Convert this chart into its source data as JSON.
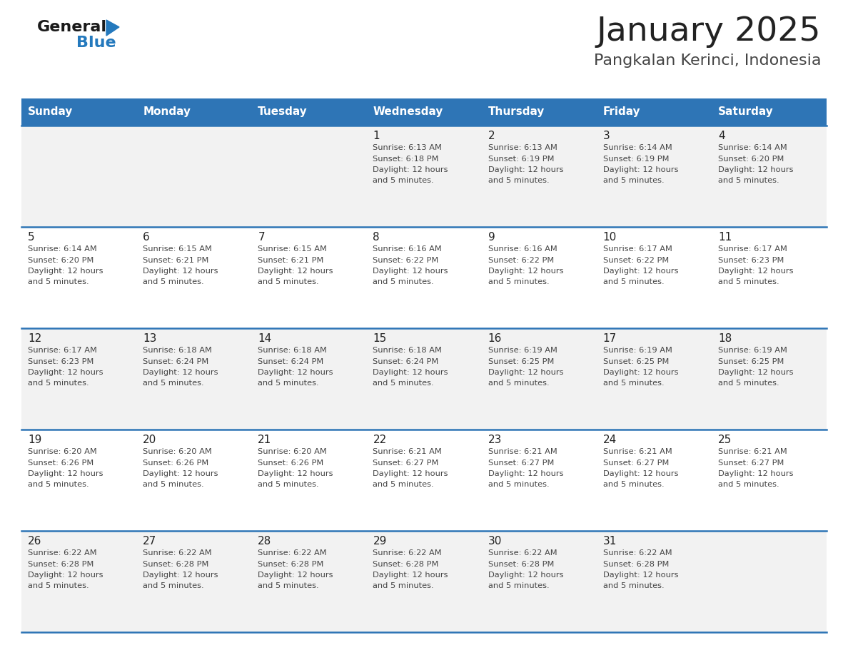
{
  "title": "January 2025",
  "subtitle": "Pangkalan Kerinci, Indonesia",
  "days_of_week": [
    "Sunday",
    "Monday",
    "Tuesday",
    "Wednesday",
    "Thursday",
    "Friday",
    "Saturday"
  ],
  "header_bg": "#2E75B6",
  "header_text_color": "#FFFFFF",
  "cell_bg_odd": "#F2F2F2",
  "cell_bg_even": "#FFFFFF",
  "divider_color": "#2E75B6",
  "text_color": "#444444",
  "day_num_color": "#222222",
  "title_color": "#222222",
  "subtitle_color": "#444444",
  "logo_general_color": "#1a1a1a",
  "logo_blue_color": "#2479BD",
  "calendar": [
    [
      null,
      null,
      null,
      1,
      2,
      3,
      4
    ],
    [
      5,
      6,
      7,
      8,
      9,
      10,
      11
    ],
    [
      12,
      13,
      14,
      15,
      16,
      17,
      18
    ],
    [
      19,
      20,
      21,
      22,
      23,
      24,
      25
    ],
    [
      26,
      27,
      28,
      29,
      30,
      31,
      null
    ]
  ],
  "day_data": {
    "1": {
      "sunrise": "6:13 AM",
      "sunset": "6:18 PM"
    },
    "2": {
      "sunrise": "6:13 AM",
      "sunset": "6:19 PM"
    },
    "3": {
      "sunrise": "6:14 AM",
      "sunset": "6:19 PM"
    },
    "4": {
      "sunrise": "6:14 AM",
      "sunset": "6:20 PM"
    },
    "5": {
      "sunrise": "6:14 AM",
      "sunset": "6:20 PM"
    },
    "6": {
      "sunrise": "6:15 AM",
      "sunset": "6:21 PM"
    },
    "7": {
      "sunrise": "6:15 AM",
      "sunset": "6:21 PM"
    },
    "8": {
      "sunrise": "6:16 AM",
      "sunset": "6:22 PM"
    },
    "9": {
      "sunrise": "6:16 AM",
      "sunset": "6:22 PM"
    },
    "10": {
      "sunrise": "6:17 AM",
      "sunset": "6:22 PM"
    },
    "11": {
      "sunrise": "6:17 AM",
      "sunset": "6:23 PM"
    },
    "12": {
      "sunrise": "6:17 AM",
      "sunset": "6:23 PM"
    },
    "13": {
      "sunrise": "6:18 AM",
      "sunset": "6:24 PM"
    },
    "14": {
      "sunrise": "6:18 AM",
      "sunset": "6:24 PM"
    },
    "15": {
      "sunrise": "6:18 AM",
      "sunset": "6:24 PM"
    },
    "16": {
      "sunrise": "6:19 AM",
      "sunset": "6:25 PM"
    },
    "17": {
      "sunrise": "6:19 AM",
      "sunset": "6:25 PM"
    },
    "18": {
      "sunrise": "6:19 AM",
      "sunset": "6:25 PM"
    },
    "19": {
      "sunrise": "6:20 AM",
      "sunset": "6:26 PM"
    },
    "20": {
      "sunrise": "6:20 AM",
      "sunset": "6:26 PM"
    },
    "21": {
      "sunrise": "6:20 AM",
      "sunset": "6:26 PM"
    },
    "22": {
      "sunrise": "6:21 AM",
      "sunset": "6:27 PM"
    },
    "23": {
      "sunrise": "6:21 AM",
      "sunset": "6:27 PM"
    },
    "24": {
      "sunrise": "6:21 AM",
      "sunset": "6:27 PM"
    },
    "25": {
      "sunrise": "6:21 AM",
      "sunset": "6:27 PM"
    },
    "26": {
      "sunrise": "6:22 AM",
      "sunset": "6:28 PM"
    },
    "27": {
      "sunrise": "6:22 AM",
      "sunset": "6:28 PM"
    },
    "28": {
      "sunrise": "6:22 AM",
      "sunset": "6:28 PM"
    },
    "29": {
      "sunrise": "6:22 AM",
      "sunset": "6:28 PM"
    },
    "30": {
      "sunrise": "6:22 AM",
      "sunset": "6:28 PM"
    },
    "31": {
      "sunrise": "6:22 AM",
      "sunset": "6:28 PM"
    }
  },
  "figwidth": 11.88,
  "figheight": 9.18,
  "dpi": 100
}
